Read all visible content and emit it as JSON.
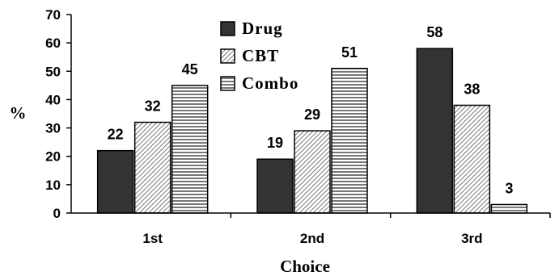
{
  "chart_data": {
    "type": "bar",
    "title": "",
    "xlabel": "Choice",
    "ylabel": "%",
    "ylim": [
      0,
      70
    ],
    "yticks": [
      0,
      10,
      20,
      30,
      40,
      50,
      60,
      70
    ],
    "grid": false,
    "legend_position": "top-center",
    "categories": [
      "1st",
      "2nd",
      "3rd"
    ],
    "series": [
      {
        "name": "Drug",
        "values": [
          22,
          19,
          58
        ],
        "color": "#333333",
        "pattern": "solid"
      },
      {
        "name": "CBT",
        "values": [
          32,
          29,
          38
        ],
        "color": "#ffffff",
        "pattern": "diagonal-stripes"
      },
      {
        "name": "Combo",
        "values": [
          45,
          51,
          3
        ],
        "color": "#ffffff",
        "pattern": "horizontal-stripes"
      }
    ]
  }
}
